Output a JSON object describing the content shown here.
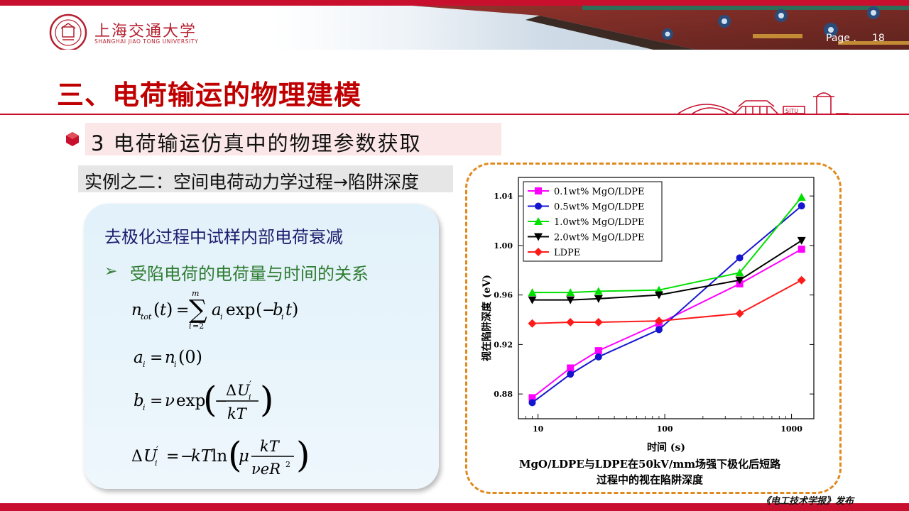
{
  "header": {
    "university_cn": "上海交通大学",
    "university_en": "SHANGHAI JIAO TONG UNIVERSITY",
    "page_label": "Page .",
    "page_number": "18"
  },
  "title": "三、电荷输运的物理建模",
  "section": {
    "number": "3",
    "text": "3  电荷输运仿真中的物理参数获取"
  },
  "example_label": "实例之二：空间电荷动力学过程→陷阱深度",
  "panel": {
    "title": "去极化过程中试样内部电荷衰减",
    "subtitle": "受陷电荷的电荷量与时间的关系"
  },
  "chart_data": {
    "type": "line",
    "xscale": "log",
    "xlabel": "时间 (s)",
    "ylabel": "视在陷阱深度 (eV)",
    "xlim": [
      7,
      1500
    ],
    "ylim": [
      0.86,
      1.055
    ],
    "xticks": [
      10,
      100,
      1000
    ],
    "yticks": [
      0.88,
      0.92,
      0.96,
      1.0,
      1.04
    ],
    "legend_position": "top-left",
    "series": [
      {
        "name": "0.1wt% MgO/LDPE",
        "color": "#ff00ff",
        "marker": "square",
        "points": [
          [
            9,
            0.877
          ],
          [
            18,
            0.901
          ],
          [
            30,
            0.915
          ],
          [
            90,
            0.937
          ],
          [
            390,
            0.969
          ],
          [
            1200,
            0.997
          ]
        ]
      },
      {
        "name": "0.5wt% MgO/LDPE",
        "color": "#1515d0",
        "marker": "circle",
        "points": [
          [
            9,
            0.873
          ],
          [
            18,
            0.896
          ],
          [
            30,
            0.91
          ],
          [
            90,
            0.932
          ],
          [
            390,
            0.99
          ],
          [
            1200,
            1.032
          ]
        ]
      },
      {
        "name": "1.0wt% MgO/LDPE",
        "color": "#00e000",
        "marker": "triangle-up",
        "points": [
          [
            9,
            0.962
          ],
          [
            18,
            0.962
          ],
          [
            30,
            0.963
          ],
          [
            90,
            0.964
          ],
          [
            390,
            0.978
          ],
          [
            1200,
            1.039
          ]
        ]
      },
      {
        "name": "2.0wt% MgO/LDPE",
        "color": "#000000",
        "marker": "triangle-down",
        "points": [
          [
            9,
            0.956
          ],
          [
            18,
            0.956
          ],
          [
            30,
            0.957
          ],
          [
            90,
            0.96
          ],
          [
            390,
            0.972
          ],
          [
            1200,
            1.004
          ]
        ]
      },
      {
        "name": "LDPE",
        "color": "#ff1a1a",
        "marker": "diamond",
        "points": [
          [
            9,
            0.937
          ],
          [
            18,
            0.938
          ],
          [
            30,
            0.938
          ],
          [
            90,
            0.939
          ],
          [
            390,
            0.945
          ],
          [
            1200,
            0.972
          ]
        ]
      }
    ]
  },
  "caption": {
    "line1": "MgO/LDPE与LDPE在50kV/mm场强下极化后短路",
    "line2": "过程中的视在陷阱深度"
  },
  "source": "《电工技术学报》发布",
  "colors": {
    "brand_red": "#c8102e",
    "title_red": "#c00000",
    "frame_orange": "#e08a1e"
  }
}
